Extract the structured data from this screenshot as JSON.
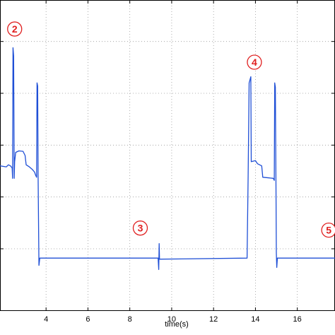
{
  "chart_data": {
    "type": "line",
    "xlabel": "time(s)",
    "ylabel": "",
    "xlim": [
      1.8,
      17.8
    ],
    "ylim": [
      0,
      15
    ],
    "x_ticks": [
      4,
      6,
      8,
      10,
      12,
      14,
      16
    ],
    "y_grid_levels": [
      3,
      5.5,
      8,
      10.5,
      13
    ],
    "grid": true,
    "line_color": "#1f4fd6",
    "marker_color": "#e02020",
    "series": [
      {
        "points": [
          [
            1.8,
            7.0
          ],
          [
            2.1,
            6.95
          ],
          [
            2.2,
            7.05
          ],
          [
            2.3,
            7.0
          ],
          [
            2.38,
            6.9
          ],
          [
            2.4,
            6.4
          ],
          [
            2.42,
            12.7
          ],
          [
            2.45,
            12.3
          ],
          [
            2.48,
            6.4
          ],
          [
            2.5,
            7.2
          ],
          [
            2.55,
            7.65
          ],
          [
            2.7,
            7.72
          ],
          [
            2.9,
            7.7
          ],
          [
            3.0,
            7.5
          ],
          [
            3.05,
            7.05
          ],
          [
            3.2,
            6.95
          ],
          [
            3.35,
            6.82
          ],
          [
            3.45,
            6.7
          ],
          [
            3.5,
            6.55
          ],
          [
            3.55,
            6.45
          ],
          [
            3.57,
            11.0
          ],
          [
            3.6,
            10.85
          ],
          [
            3.62,
            6.6
          ],
          [
            3.66,
            2.2
          ],
          [
            3.7,
            2.55
          ],
          [
            9.35,
            2.55
          ],
          [
            9.38,
            2.0
          ],
          [
            9.4,
            3.25
          ],
          [
            9.42,
            2.5
          ],
          [
            13.6,
            2.55
          ],
          [
            13.65,
            6.5
          ],
          [
            13.7,
            11.0
          ],
          [
            13.78,
            11.3
          ],
          [
            13.8,
            7.2
          ],
          [
            14.0,
            7.25
          ],
          [
            14.1,
            7.1
          ],
          [
            14.3,
            7.0
          ],
          [
            14.35,
            6.45
          ],
          [
            14.85,
            6.4
          ],
          [
            14.9,
            6.3
          ],
          [
            14.92,
            11.0
          ],
          [
            14.95,
            10.8
          ],
          [
            14.98,
            6.0
          ],
          [
            15.0,
            2.8
          ],
          [
            15.02,
            2.1
          ],
          [
            15.05,
            2.55
          ],
          [
            17.8,
            2.55
          ]
        ]
      }
    ],
    "annotations": [
      {
        "label": "2",
        "x": 2.5,
        "y": 13.6
      },
      {
        "label": "3",
        "x": 8.5,
        "y": 4.0
      },
      {
        "label": "4",
        "x": 13.95,
        "y": 12.0
      },
      {
        "label": "5",
        "x": 17.5,
        "y": 3.9
      }
    ]
  }
}
